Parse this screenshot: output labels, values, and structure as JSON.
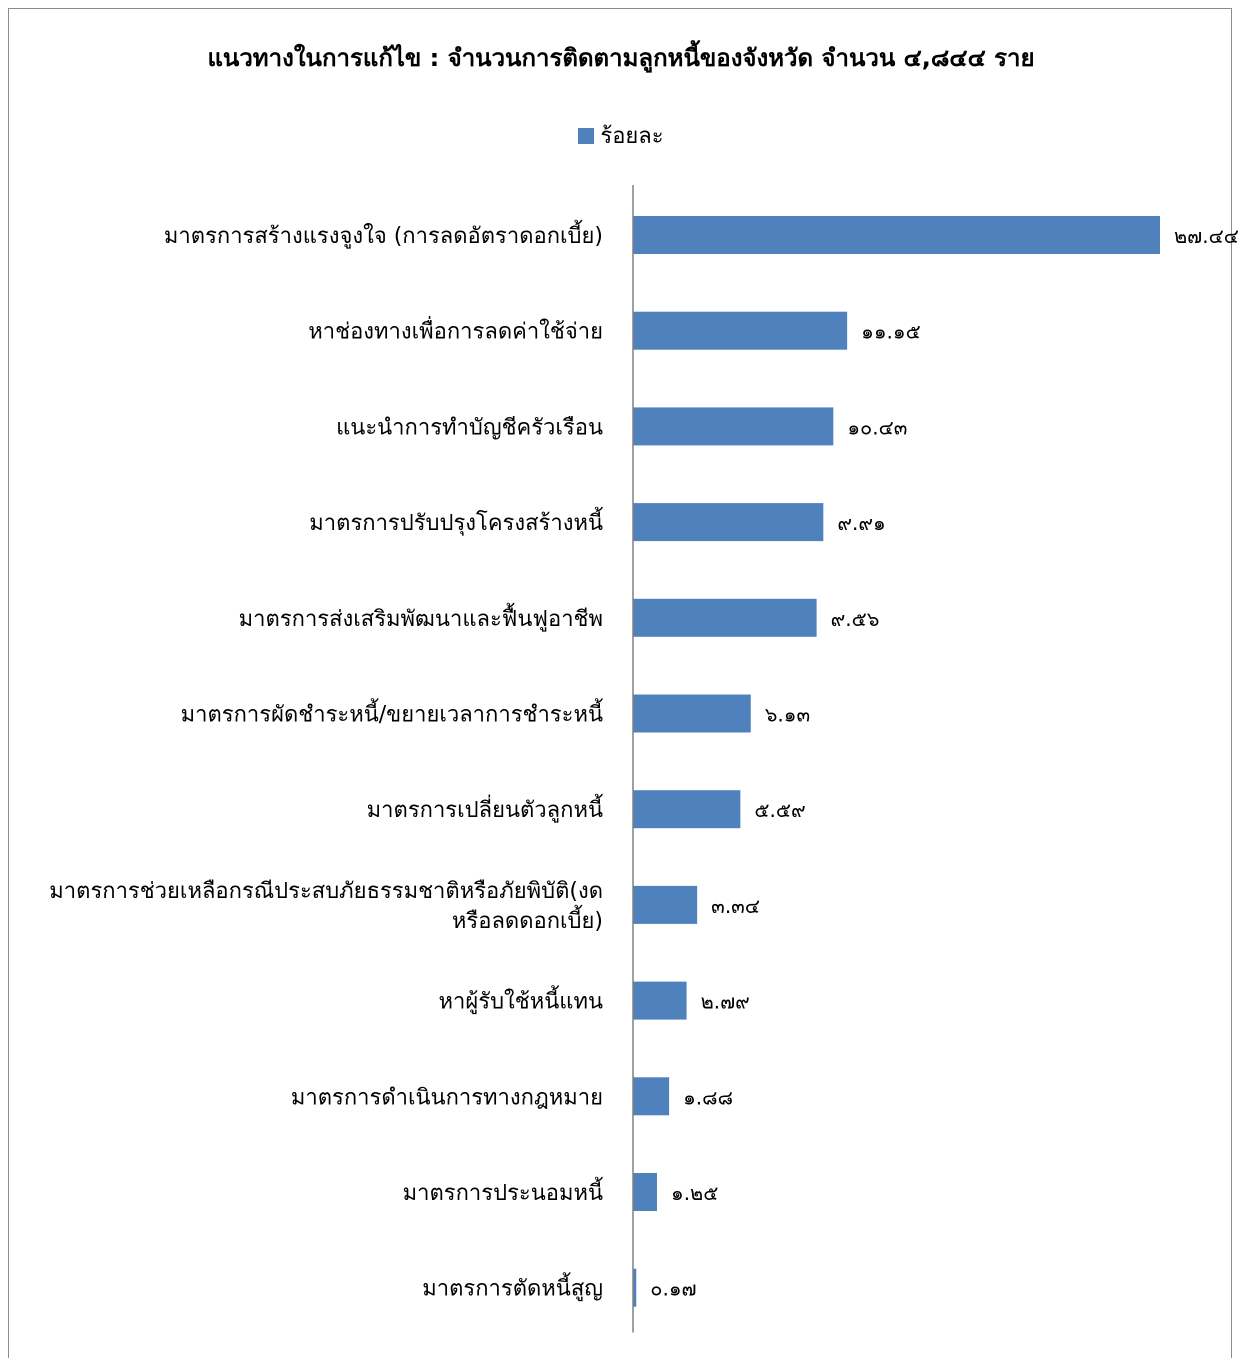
{
  "chart_data": {
    "type": "bar",
    "orientation": "horizontal",
    "title": "แนวทางในการแก้ไข : จำนวนการติดตามลูกหนี้ของจังหวัด จำนวน ๔,๘๔๔ ราย",
    "legend_position": "top",
    "series": [
      {
        "name": "ร้อยละ",
        "color": "#4f81bd",
        "values": [
          27.44,
          11.15,
          10.43,
          9.91,
          9.56,
          6.13,
          5.59,
          3.34,
          2.79,
          1.88,
          1.25,
          0.17
        ],
        "data_labels": [
          "๒๗.๔๔",
          "๑๑.๑๕",
          "๑๐.๔๓",
          "๙.๙๑",
          "๙.๕๖",
          "๖.๑๓",
          "๕.๕๙",
          "๓.๓๔",
          "๒.๗๙",
          "๑.๘๘",
          "๑.๒๕",
          "๐.๑๗"
        ]
      }
    ],
    "categories": [
      "มาตรการสร้างแรงจูงใจ (การลดอัตราดอกเบี้ย)",
      "หาช่องทางเพื่อการลดค่าใช้จ่าย",
      "แนะนำการทำบัญชีครัวเรือน",
      "มาตรการปรับปรุงโครงสร้างหนี้",
      "มาตรการส่งเสริมพัฒนาและฟื้นฟูอาชีพ",
      "มาตรการผัดชำระหนี้/ขยายเวลาการชำระหนี้",
      "มาตรการเปลี่ยนตัวลูกหนี้",
      "มาตรการช่วยเหลือกรณีประสบภัยธรรมชาติหรือภัยพิบัติ(งดหรือลดดอกเบี้ย)",
      "หาผู้รับใช้หนี้แทน",
      "มาตรการดำเนินการทางกฎหมาย",
      "มาตรการประนอมหนี้",
      "มาตรการตัดหนี้สูญ"
    ],
    "category_label_lines": [
      [
        "มาตรการสร้างแรงจูงใจ (การลดอัตราดอกเบี้ย)"
      ],
      [
        "หาช่องทางเพื่อการลดค่าใช้จ่าย"
      ],
      [
        "แนะนำการทำบัญชีครัวเรือน"
      ],
      [
        "มาตรการปรับปรุงโครงสร้างหนี้"
      ],
      [
        "มาตรการส่งเสริมพัฒนาและฟื้นฟูอาชีพ"
      ],
      [
        "มาตรการผัดชำระหนี้/ขยายเวลาการชำระหนี้"
      ],
      [
        "มาตรการเปลี่ยนตัวลูกหนี้"
      ],
      [
        "มาตรการช่วยเหลือกรณีประสบภัยธรรมชาติหรือภัยพิบัติ(งด",
        "หรือลดดอกเบี้ย)"
      ],
      [
        "หาผู้รับใช้หนี้แทน"
      ],
      [
        "มาตรการดำเนินการทางกฎหมาย"
      ],
      [
        "มาตรการประนอมหนี้"
      ],
      [
        "มาตรการตัดหนี้สูญ"
      ]
    ],
    "xlim": [
      0,
      30
    ],
    "grid": false
  }
}
